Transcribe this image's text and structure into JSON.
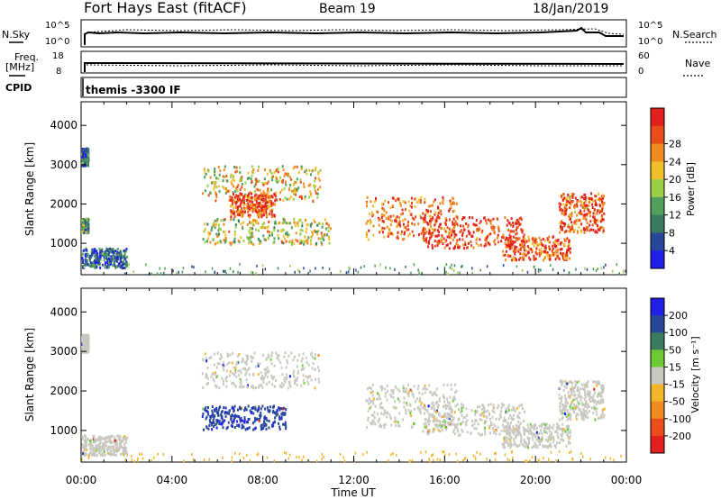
{
  "header": {
    "station": "Fort Hays East (fitACF)",
    "beam": "Beam 19",
    "date": "18/Jan/2019"
  },
  "status_panels": {
    "nsky_label": "N.Sky",
    "nsky_ticks": [
      "10^5",
      "10^0"
    ],
    "nsearch_label": "N.Search",
    "nsearch_ticks": [
      "10^5",
      "10^0"
    ],
    "freq_label": "Freq.",
    "freq_unit": "[MHz]",
    "freq_ticks": [
      "18",
      "8"
    ],
    "nave_label": "Nave",
    "nave_ticks": [
      "60",
      "0"
    ],
    "cpid_label": "CPID",
    "cpid_value": "themis -3300 IF"
  },
  "chart_data": [
    {
      "type": "heatmap",
      "name": "power",
      "ylabel": "Slant Range [km]",
      "yticks": [
        "1000",
        "2000",
        "3000",
        "4000"
      ],
      "ylim": [
        200,
        4600
      ],
      "xlim": [
        0,
        24
      ],
      "colorbar": {
        "label": "Power [dB]",
        "ticks": [
          "4",
          "8",
          "12",
          "16",
          "20",
          "24",
          "28"
        ],
        "colors": [
          "#1f1fe8",
          "#28479a",
          "#3b7b5f",
          "#4ea05a",
          "#9ccf48",
          "#f1bf2b",
          "#f08a20",
          "#ea4c1a",
          "#e3201b"
        ]
      },
      "regions": [
        {
          "t": [
            0.0,
            0.3
          ],
          "r": [
            3000,
            3450
          ],
          "level": 0.25
        },
        {
          "t": [
            0.0,
            0.3
          ],
          "r": [
            1300,
            1650
          ],
          "level": 0.35
        },
        {
          "t": [
            0.0,
            2.0
          ],
          "r": [
            400,
            900
          ],
          "level": 0.2
        },
        {
          "t": [
            5.3,
            10.5
          ],
          "r": [
            2100,
            3000
          ],
          "level": 0.6
        },
        {
          "t": [
            6.5,
            8.5
          ],
          "r": [
            1700,
            2300
          ],
          "level": 0.85
        },
        {
          "t": [
            5.3,
            11.0
          ],
          "r": [
            1000,
            1650
          ],
          "level": 0.55
        },
        {
          "t": [
            12.5,
            16.5
          ],
          "r": [
            1100,
            2200
          ],
          "level": 0.8
        },
        {
          "t": [
            15.0,
            19.5
          ],
          "r": [
            900,
            1700
          ],
          "level": 0.9
        },
        {
          "t": [
            18.5,
            21.5
          ],
          "r": [
            600,
            1200
          ],
          "level": 0.85
        },
        {
          "t": [
            21.0,
            23.0
          ],
          "r": [
            1300,
            2300
          ],
          "level": 0.8
        }
      ]
    },
    {
      "type": "heatmap",
      "name": "velocity",
      "xlabel": "Time UT",
      "ylabel": "Slant Range [km]",
      "xticks": [
        "00:00",
        "04:00",
        "08:00",
        "12:00",
        "16:00",
        "20:00",
        "00:00"
      ],
      "yticks": [
        "1000",
        "2000",
        "3000",
        "4000"
      ],
      "ylim": [
        200,
        4600
      ],
      "xlim": [
        0,
        24
      ],
      "colorbar": {
        "label": "Velocity [m s⁻¹]",
        "ticks": [
          "200",
          "100",
          "50",
          "15",
          "-15",
          "-50",
          "-100",
          "-200"
        ],
        "colors": [
          "#1f1fe8",
          "#28479a",
          "#3b7b5f",
          "#6ccb35",
          "#c8c8c0",
          "#f3b52a",
          "#f08a20",
          "#ea4c1a",
          "#e3201b"
        ]
      },
      "regions": [
        {
          "t": [
            0.0,
            0.3
          ],
          "r": [
            3000,
            3450
          ],
          "level": 0.5
        },
        {
          "t": [
            0.0,
            2.0
          ],
          "r": [
            400,
            900
          ],
          "level": 0.5
        },
        {
          "t": [
            5.3,
            10.5
          ],
          "r": [
            2100,
            3000
          ],
          "level": 0.5
        },
        {
          "t": [
            5.3,
            9.0
          ],
          "r": [
            1050,
            1650
          ],
          "level": 0.15
        },
        {
          "t": [
            12.5,
            16.5
          ],
          "r": [
            1100,
            2200
          ],
          "level": 0.5
        },
        {
          "t": [
            15.0,
            19.5
          ],
          "r": [
            900,
            1700
          ],
          "level": 0.5
        },
        {
          "t": [
            18.5,
            21.5
          ],
          "r": [
            600,
            1200
          ],
          "level": 0.5
        },
        {
          "t": [
            21.0,
            23.0
          ],
          "r": [
            1300,
            2300
          ],
          "level": 0.5
        }
      ]
    }
  ]
}
